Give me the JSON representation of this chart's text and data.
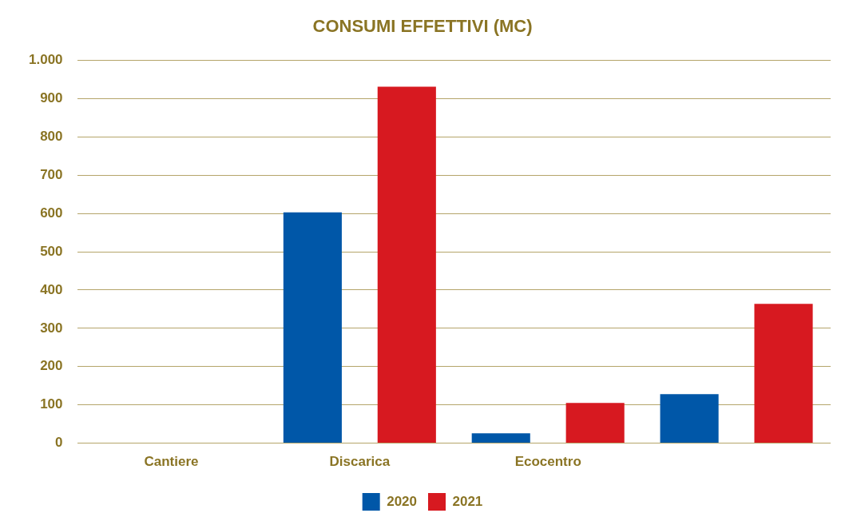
{
  "chart_data": {
    "type": "bar",
    "title": "CONSUMI EFFETTIVI (MC)",
    "categories": [
      "Cantiere",
      "Discarica",
      "Ecocentro",
      null
    ],
    "series": [
      {
        "name": "2020",
        "color": "#0057a8",
        "values": [
          0,
          603,
          26,
          128
        ]
      },
      {
        "name": "2021",
        "color": "#d71920",
        "values": [
          0,
          931,
          105,
          364
        ]
      }
    ],
    "ylim": [
      0,
      1000
    ],
    "yticks": [
      0,
      100,
      200,
      300,
      400,
      500,
      600,
      700,
      800,
      900,
      {
        "value": 1000,
        "label": "1.000"
      }
    ],
    "grid": "y",
    "legend": "bottom"
  }
}
